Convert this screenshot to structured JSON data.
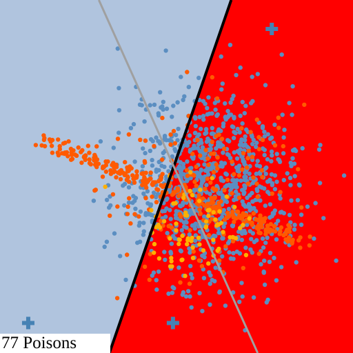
{
  "caption": "77 Poisons",
  "chart_data": {
    "type": "scatter",
    "title": "",
    "xlabel": "",
    "ylabel": "",
    "xlim": [
      0,
      1
    ],
    "ylim": [
      0,
      1
    ],
    "grid": false,
    "axes_visible": false,
    "regions": [
      {
        "class": "left",
        "color": "#b0c4de"
      },
      {
        "class": "right",
        "color": "#ff0000"
      }
    ],
    "decision_boundaries": [
      {
        "name": "poisoned",
        "color": "#000000",
        "points": [
          [
            0.31,
            0.0
          ],
          [
            0.655,
            1.0
          ]
        ]
      },
      {
        "name": "clean",
        "color": "#a0a0a0",
        "points": [
          [
            0.73,
            0.0
          ],
          [
            0.28,
            1.0
          ]
        ]
      }
    ],
    "class_means": [
      {
        "class": "blue",
        "marker": "plus",
        "color": "#4682b4",
        "points": [
          [
            0.08,
            0.085
          ],
          [
            0.49,
            0.085
          ],
          [
            0.77,
            0.918
          ]
        ]
      }
    ],
    "series": [
      {
        "class": "blue",
        "color": "#5b8ec1",
        "distribution": {
          "center": [
            0.6,
            0.47
          ],
          "sd": [
            0.12,
            0.13
          ],
          "count": 950
        }
      },
      {
        "class": "orange",
        "color": "#ff5a00",
        "distribution": {
          "line_from": [
            0.12,
            0.6
          ],
          "line_to": [
            0.86,
            0.32
          ],
          "spread": 0.012,
          "count": 260
        }
      },
      {
        "class": "orange",
        "color": "#ff5a00",
        "distribution": {
          "center": [
            0.56,
            0.48
          ],
          "sd": [
            0.14,
            0.13
          ],
          "count": 170
        }
      },
      {
        "class": "poison",
        "color": "#ffb000",
        "distribution": {
          "center": [
            0.55,
            0.36
          ],
          "sd": [
            0.08,
            0.06
          ],
          "count": 77
        }
      }
    ]
  }
}
